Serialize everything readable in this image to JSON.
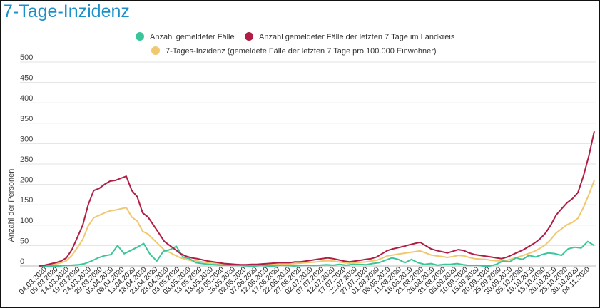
{
  "title": "7-Tage-Inzidenz",
  "chart_data": {
    "type": "line",
    "title": "7-Tage-Inzidenz",
    "xlabel": "",
    "ylabel": "Anzahl der Personen",
    "ylim": [
      0,
      500
    ],
    "yticks": [
      0,
      50,
      100,
      150,
      200,
      250,
      300,
      350,
      400,
      450,
      500
    ],
    "grid": true,
    "legend_position": "top-center",
    "x_tick_labels": [
      "04.03.2020",
      "09.03.2020",
      "14.03.2020",
      "19.03.2020",
      "24.03.2020",
      "29.03.2020",
      "03.04.2020",
      "08.04.2020",
      "13.04.2020",
      "18.04.2020",
      "23.04.2020",
      "28.04.2020",
      "03.05.2020",
      "08.05.2020",
      "13.05.2020",
      "18.05.2020",
      "23.05.2020",
      "28.05.2020",
      "02.06.2020",
      "07.06.2020",
      "12.06.2020",
      "17.06.2020",
      "22.06.2020",
      "27.06.2020",
      "02.07.2020",
      "07.07.2020",
      "12.07.2020",
      "17.07.2020",
      "22.07.2020",
      "27.07.2020",
      "01.08.2020",
      "06.08.2020",
      "11.08.2020",
      "16.08.2020",
      "21.08.2020",
      "26.08.2020",
      "31.08.2020",
      "05.09.2020",
      "10.09.2020",
      "15.09.2020",
      "20.09.2020",
      "25.09.2020",
      "30.09.2020",
      "05.10.2020",
      "10.10.2020",
      "15.10.2020",
      "20.10.2020",
      "25.10.2020",
      "30.10.2020",
      "04.11.2020"
    ],
    "series": [
      {
        "name": "Anzahl gemeldeter Fälle",
        "color": "#3cc59a",
        "values": [
          0,
          0,
          0,
          0,
          1,
          2,
          3,
          6,
          12,
          20,
          25,
          28,
          50,
          30,
          38,
          46,
          55,
          28,
          12,
          36,
          40,
          48,
          22,
          18,
          8,
          6,
          4,
          3,
          2,
          2,
          1,
          1,
          0,
          0,
          1,
          0,
          0,
          2,
          1,
          0,
          1,
          2,
          1,
          2,
          3,
          2,
          4,
          2,
          4,
          4,
          3,
          6,
          8,
          14,
          20,
          16,
          8,
          16,
          8,
          4,
          6,
          2,
          4,
          4,
          6,
          3,
          1,
          2,
          0,
          0,
          4,
          12,
          10,
          20,
          16,
          26,
          22,
          28,
          32,
          30,
          26,
          42,
          46,
          44,
          60,
          50
        ]
      },
      {
        "name": "Anzahl gemeldeter Fälle der letzten 7 Tage im Landkreis",
        "color": "#b01e45",
        "values": [
          0,
          2,
          5,
          8,
          12,
          20,
          40,
          70,
          100,
          150,
          185,
          190,
          200,
          208,
          210,
          215,
          220,
          185,
          170,
          130,
          120,
          100,
          80,
          60,
          50,
          40,
          30,
          24,
          20,
          18,
          15,
          12,
          10,
          8,
          6,
          5,
          4,
          3,
          3,
          4,
          4,
          5,
          6,
          7,
          8,
          8,
          8,
          10,
          10,
          12,
          14,
          16,
          18,
          20,
          18,
          15,
          12,
          10,
          12,
          14,
          16,
          18,
          22,
          30,
          38,
          42,
          45,
          48,
          52,
          55,
          58,
          50,
          42,
          38,
          35,
          32,
          36,
          40,
          38,
          32,
          28,
          26,
          24,
          22,
          20,
          18,
          22,
          28,
          34,
          40,
          48,
          56,
          66,
          80,
          100,
          125,
          140,
          155,
          165,
          180,
          220,
          270,
          330
        ]
      },
      {
        "name": "7-Tages-Inzidenz (gemeldete Fälle der letzten 7 Tage pro 100.000 Einwohner)",
        "color": "#f0c870",
        "values": [
          0,
          1,
          3,
          5,
          8,
          13,
          26,
          45,
          65,
          98,
          118,
          124,
          130,
          135,
          137,
          140,
          143,
          120,
          110,
          85,
          78,
          65,
          52,
          39,
          33,
          26,
          20,
          16,
          13,
          12,
          10,
          8,
          7,
          5,
          4,
          3,
          3,
          2,
          2,
          3,
          3,
          3,
          4,
          5,
          5,
          5,
          5,
          6,
          7,
          8,
          9,
          10,
          12,
          13,
          12,
          10,
          8,
          7,
          8,
          9,
          10,
          12,
          14,
          19,
          25,
          27,
          29,
          31,
          33,
          35,
          37,
          32,
          27,
          25,
          23,
          21,
          23,
          26,
          25,
          21,
          18,
          17,
          16,
          14,
          13,
          12,
          14,
          18,
          22,
          26,
          31,
          36,
          43,
          52,
          65,
          81,
          91,
          101,
          107,
          117,
          143,
          175,
          210
        ]
      }
    ]
  }
}
